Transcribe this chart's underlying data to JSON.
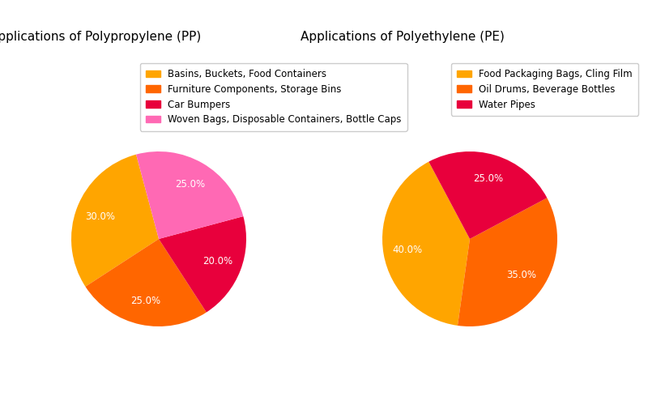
{
  "pp_title": "Applications of Polypropylene (PP)",
  "pe_title": "Applications of Polyethylene (PE)",
  "pp_labels": [
    "Basins, Buckets, Food Containers",
    "Furniture Components, Storage Bins",
    "Car Bumpers",
    "Woven Bags, Disposable Containers, Bottle Caps"
  ],
  "pp_values": [
    30.0,
    25.0,
    20.0,
    25.0
  ],
  "pp_colors": [
    "#FFA500",
    "#FF6600",
    "#E8003C",
    "#FF69B4"
  ],
  "pe_labels": [
    "Food Packaging Bags, Cling Film",
    "Oil Drums, Beverage Bottles",
    "Water Pipes"
  ],
  "pe_values": [
    40.0,
    35.0,
    25.0
  ],
  "pe_colors": [
    "#FFA500",
    "#FF6600",
    "#E8003C"
  ],
  "background_color": "#FFFFFF",
  "autopct_color": "white",
  "title_fontsize": 11,
  "legend_fontsize": 8.5,
  "startangle_pp": 105,
  "startangle_pe": 118
}
